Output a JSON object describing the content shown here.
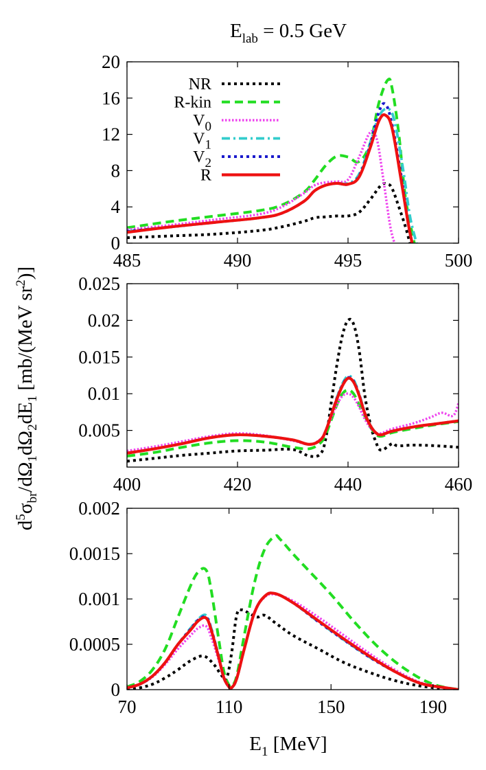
{
  "figure": {
    "title": "E_lab = 0.5 GeV",
    "title_main": "E",
    "title_sub": "lab",
    "title_rest": " = 0.5 GeV",
    "ylabel": "d5σbr/dΩ1dΩ2dE1 [mb/(MeV sr2)]",
    "xlabel": "E1 [MeV]"
  },
  "series_styles": [
    {
      "name": "NR",
      "color": "#000000",
      "dash": "dotted"
    },
    {
      "name": "R-kin",
      "color": "#22dd22",
      "dash": "dashed"
    },
    {
      "name": "V0",
      "color": "#ee44ee",
      "dash": "fine-dotted"
    },
    {
      "name": "V1",
      "color": "#33cccc",
      "dash": "dash-dot"
    },
    {
      "name": "V2",
      "color": "#1a1acc",
      "dash": "dotted"
    },
    {
      "name": "R",
      "color": "#ee1111",
      "dash": "solid"
    }
  ],
  "legend": {
    "placement": "top-left (top panel)",
    "entries": [
      {
        "main": "NR",
        "sub": ""
      },
      {
        "main": "R-kin",
        "sub": ""
      },
      {
        "main": "V",
        "sub": "0"
      },
      {
        "main": "V",
        "sub": "1"
      },
      {
        "main": "V",
        "sub": "2"
      },
      {
        "main": "R",
        "sub": ""
      }
    ]
  },
  "chart_data": [
    {
      "type": "line",
      "panel": "top",
      "xlim": [
        485,
        500
      ],
      "ylim": [
        0,
        20
      ],
      "xticks": [
        "485",
        "490",
        "495",
        "500"
      ],
      "yticks": [
        "0",
        "4",
        "8",
        "12",
        "16",
        "20"
      ],
      "series": [
        {
          "name": "NR",
          "x": [
            485,
            487,
            489,
            491,
            492,
            493,
            493.5,
            494,
            494.5,
            495,
            495.5,
            496,
            496.5,
            496.8,
            497,
            497.3,
            497.6,
            497.8
          ],
          "y": [
            0.6,
            0.8,
            1.0,
            1.4,
            1.8,
            2.4,
            2.8,
            2.9,
            3.0,
            3.0,
            3.4,
            4.8,
            6.4,
            6.5,
            6.0,
            4.0,
            1.8,
            0
          ]
        },
        {
          "name": "R-kin",
          "x": [
            485,
            487,
            489,
            491,
            492,
            493,
            493.5,
            494,
            494.5,
            495,
            495.5,
            496,
            496.4,
            496.8,
            497,
            497.3,
            497.6,
            498
          ],
          "y": [
            1.7,
            2.4,
            3.0,
            3.6,
            4.2,
            5.6,
            7.0,
            8.6,
            9.6,
            9.5,
            9.0,
            11.0,
            15.5,
            18.0,
            17.0,
            12.0,
            5.0,
            0
          ]
        },
        {
          "name": "V0",
          "x": [
            485,
            487,
            489,
            491,
            492,
            493,
            493.5,
            494,
            494.5,
            495,
            495.5,
            496,
            496.3,
            496.6,
            496.9,
            497.1
          ],
          "y": [
            1.5,
            2.0,
            2.6,
            3.2,
            4.0,
            5.5,
            6.4,
            6.7,
            6.8,
            7.0,
            9.5,
            12.2,
            11.5,
            7.0,
            2.0,
            0
          ]
        },
        {
          "name": "V1",
          "x": [
            485,
            487,
            489,
            491,
            492,
            493,
            493.5,
            494,
            494.5,
            495,
            495.5,
            496,
            496.4,
            496.8,
            497.1,
            497.5,
            497.8,
            498.1
          ],
          "y": [
            1.3,
            1.8,
            2.3,
            2.8,
            3.3,
            4.6,
            5.8,
            6.4,
            6.6,
            6.6,
            7.6,
            11.0,
            14.0,
            14.8,
            13.5,
            8.0,
            3.0,
            0
          ]
        },
        {
          "name": "V2",
          "x": [
            485,
            487,
            489,
            491,
            492,
            493,
            493.5,
            494,
            494.5,
            495,
            495.5,
            496,
            496.4,
            496.7,
            497,
            497.4,
            497.7,
            497.9
          ],
          "y": [
            1.3,
            1.8,
            2.3,
            2.8,
            3.3,
            4.6,
            5.8,
            6.4,
            6.6,
            6.5,
            7.4,
            10.8,
            14.5,
            15.3,
            13.0,
            7.5,
            2.5,
            0
          ]
        },
        {
          "name": "R",
          "x": [
            485,
            487,
            489,
            491,
            492,
            493,
            493.5,
            494,
            494.5,
            495,
            495.5,
            496,
            496.4,
            496.7,
            497,
            497.4,
            497.7,
            497.9
          ],
          "y": [
            1.2,
            1.8,
            2.3,
            2.8,
            3.3,
            4.6,
            5.8,
            6.4,
            6.6,
            6.5,
            7.3,
            10.5,
            13.5,
            14.1,
            12.6,
            7.0,
            2.5,
            0
          ]
        }
      ]
    },
    {
      "type": "line",
      "panel": "middle",
      "xlim": [
        400,
        460
      ],
      "ylim": [
        0,
        0.025
      ],
      "xticks": [
        "400",
        "420",
        "440",
        "460"
      ],
      "yticks": [
        "0.005",
        "0.01",
        "0.015",
        "0.02",
        "0.025"
      ],
      "series": [
        {
          "name": "NR",
          "x": [
            400,
            405,
            410,
            415,
            420,
            425,
            430,
            433,
            435,
            436,
            437,
            438,
            439,
            440,
            441,
            442,
            443,
            444,
            445,
            446,
            448,
            449,
            452,
            456,
            460
          ],
          "y": [
            0.0008,
            0.0012,
            0.0016,
            0.0019,
            0.0022,
            0.0023,
            0.0024,
            0.0015,
            0.0018,
            0.004,
            0.009,
            0.014,
            0.018,
            0.02,
            0.0195,
            0.016,
            0.01,
            0.006,
            0.0035,
            0.0023,
            0.0032,
            0.0029,
            0.003,
            0.0029,
            0.0027
          ]
        },
        {
          "name": "R-kin",
          "x": [
            400,
            405,
            410,
            415,
            420,
            425,
            430,
            433,
            435,
            436,
            437,
            438,
            439,
            440,
            441,
            442,
            443,
            444,
            445,
            446,
            448,
            452,
            456,
            460
          ],
          "y": [
            0.0015,
            0.002,
            0.0027,
            0.0033,
            0.0036,
            0.0034,
            0.0027,
            0.0025,
            0.0033,
            0.0045,
            0.0065,
            0.0085,
            0.01,
            0.0105,
            0.01,
            0.0085,
            0.007,
            0.0055,
            0.0045,
            0.0042,
            0.0047,
            0.0053,
            0.0058,
            0.0062
          ]
        },
        {
          "name": "V0",
          "x": [
            400,
            405,
            410,
            415,
            420,
            425,
            430,
            433,
            435,
            436,
            437,
            438,
            439,
            440,
            441,
            442,
            443,
            444,
            445,
            446,
            448,
            452,
            455,
            457,
            459,
            460
          ],
          "y": [
            0.0022,
            0.0028,
            0.0035,
            0.0042,
            0.0046,
            0.0043,
            0.0036,
            0.0031,
            0.0038,
            0.005,
            0.0068,
            0.0085,
            0.0097,
            0.01,
            0.0095,
            0.0082,
            0.0066,
            0.0054,
            0.0047,
            0.0046,
            0.0052,
            0.006,
            0.0068,
            0.0074,
            0.007,
            0.0087
          ]
        },
        {
          "name": "V1",
          "x": [
            400,
            405,
            410,
            415,
            420,
            425,
            430,
            433,
            435,
            436,
            437,
            438,
            439,
            440,
            441,
            442,
            443,
            444,
            445,
            446,
            448,
            452,
            456,
            460
          ],
          "y": [
            0.0019,
            0.0025,
            0.0032,
            0.004,
            0.0044,
            0.0042,
            0.0037,
            0.0031,
            0.0037,
            0.005,
            0.0072,
            0.0095,
            0.0114,
            0.0124,
            0.0119,
            0.01,
            0.0075,
            0.0058,
            0.0047,
            0.0044,
            0.0049,
            0.0055,
            0.0059,
            0.0063
          ]
        },
        {
          "name": "V2",
          "x": [
            400,
            405,
            410,
            415,
            420,
            425,
            430,
            433,
            435,
            436,
            437,
            438,
            439,
            440,
            441,
            442,
            443,
            444,
            445,
            446,
            448,
            452,
            456,
            460
          ],
          "y": [
            0.0019,
            0.0025,
            0.0032,
            0.004,
            0.0044,
            0.0042,
            0.0037,
            0.0031,
            0.0037,
            0.005,
            0.0072,
            0.0094,
            0.0112,
            0.0122,
            0.0117,
            0.0099,
            0.0074,
            0.0057,
            0.0047,
            0.0044,
            0.0049,
            0.0055,
            0.0059,
            0.0063
          ]
        },
        {
          "name": "R",
          "x": [
            400,
            405,
            410,
            415,
            420,
            425,
            430,
            433,
            435,
            436,
            437,
            438,
            439,
            440,
            441,
            442,
            443,
            444,
            445,
            446,
            448,
            452,
            456,
            460
          ],
          "y": [
            0.0019,
            0.0025,
            0.0032,
            0.004,
            0.0044,
            0.0042,
            0.0037,
            0.0031,
            0.0037,
            0.005,
            0.0072,
            0.0093,
            0.0111,
            0.0121,
            0.0116,
            0.0098,
            0.0074,
            0.0057,
            0.0047,
            0.0044,
            0.0049,
            0.0055,
            0.0059,
            0.0063
          ]
        }
      ]
    },
    {
      "type": "line",
      "panel": "bottom",
      "xlim": [
        70,
        200
      ],
      "ylim": [
        0,
        0.002
      ],
      "xticks": [
        "70",
        "110",
        "150",
        "190"
      ],
      "yticks": [
        "0",
        "0.0005",
        "0.001",
        "0.0015",
        "0.002"
      ],
      "series": [
        {
          "name": "NR",
          "x": [
            70,
            75,
            80,
            85,
            90,
            95,
            100,
            104,
            107,
            109,
            111,
            113,
            115,
            118,
            121,
            124,
            128,
            135,
            145,
            155,
            165,
            175,
            185,
            195,
            200
          ],
          "y": [
            0,
            2e-05,
            6e-05,
            0.00013,
            0.00022,
            0.00032,
            0.00037,
            0.00028,
            0.00016,
            0.00012,
            0.0004,
            0.00082,
            0.00088,
            0.00084,
            0.0008,
            0.00082,
            0.00074,
            0.0006,
            0.00045,
            0.0003,
            0.00019,
            0.0001,
            4e-05,
            1e-05,
            0
          ]
        },
        {
          "name": "R-kin",
          "x": [
            70,
            75,
            80,
            85,
            90,
            95,
            98,
            101,
            103,
            106,
            108,
            110,
            111,
            113,
            116,
            120,
            124,
            128,
            130,
            135,
            140,
            150,
            160,
            170,
            180,
            190,
            200
          ],
          "y": [
            3e-05,
            9e-05,
            0.00022,
            0.00045,
            0.0008,
            0.00115,
            0.0013,
            0.00132,
            0.0011,
            0.00055,
            0.0002,
            5e-05,
            4e-05,
            0.00015,
            0.0006,
            0.00118,
            0.00155,
            0.00169,
            0.00166,
            0.0015,
            0.00135,
            0.00105,
            0.00072,
            0.00043,
            0.00021,
            6e-05,
            0
          ]
        },
        {
          "name": "V0",
          "x": [
            70,
            75,
            80,
            85,
            90,
            95,
            98,
            101,
            103,
            106,
            108,
            110,
            111,
            113,
            116,
            120,
            124,
            128,
            135,
            145,
            155,
            165,
            175,
            185,
            195,
            200
          ],
          "y": [
            2e-05,
            6e-05,
            0.00014,
            0.00028,
            0.00045,
            0.0006,
            0.00068,
            0.0007,
            0.00058,
            0.00032,
            0.00012,
            3e-05,
            2e-05,
            0.00012,
            0.00045,
            0.00085,
            0.00102,
            0.00105,
            0.00098,
            0.0008,
            0.0006,
            0.0004,
            0.00022,
            8e-05,
            2e-05,
            0
          ]
        },
        {
          "name": "V1",
          "x": [
            70,
            75,
            80,
            85,
            90,
            95,
            98,
            101,
            103,
            106,
            108,
            110,
            111,
            113,
            116,
            120,
            124,
            128,
            135,
            145,
            155,
            165,
            175,
            185,
            195,
            200
          ],
          "y": [
            2e-05,
            6e-05,
            0.00015,
            0.0003,
            0.0005,
            0.00068,
            0.00078,
            0.00082,
            0.00068,
            0.00036,
            0.00013,
            3e-05,
            2e-05,
            0.00012,
            0.00045,
            0.00085,
            0.00103,
            0.00106,
            0.00096,
            0.00075,
            0.00055,
            0.00036,
            0.0002,
            7e-05,
            2e-05,
            0
          ]
        },
        {
          "name": "V2",
          "x": [
            70,
            75,
            80,
            85,
            90,
            95,
            98,
            101,
            103,
            106,
            108,
            110,
            111,
            113,
            116,
            120,
            124,
            128,
            135,
            145,
            155,
            165,
            175,
            185,
            195,
            200
          ],
          "y": [
            2e-05,
            6e-05,
            0.00015,
            0.0003,
            0.0005,
            0.00067,
            0.00077,
            0.0008,
            0.00067,
            0.00036,
            0.00013,
            3e-05,
            2e-05,
            0.00012,
            0.00045,
            0.00085,
            0.00103,
            0.00106,
            0.00096,
            0.00075,
            0.00055,
            0.00036,
            0.0002,
            7e-05,
            2e-05,
            0
          ]
        },
        {
          "name": "R",
          "x": [
            70,
            75,
            80,
            85,
            90,
            95,
            98,
            101,
            103,
            106,
            108,
            110,
            111,
            113,
            116,
            120,
            124,
            128,
            135,
            145,
            155,
            165,
            175,
            185,
            195,
            200
          ],
          "y": [
            2e-05,
            6e-05,
            0.00015,
            0.0003,
            0.0005,
            0.00066,
            0.00076,
            0.00079,
            0.00066,
            0.00035,
            0.00013,
            3e-05,
            2e-05,
            0.00012,
            0.00045,
            0.00085,
            0.00103,
            0.00106,
            0.00096,
            0.00076,
            0.00056,
            0.00037,
            0.0002,
            7e-05,
            2e-05,
            0
          ]
        }
      ]
    }
  ]
}
